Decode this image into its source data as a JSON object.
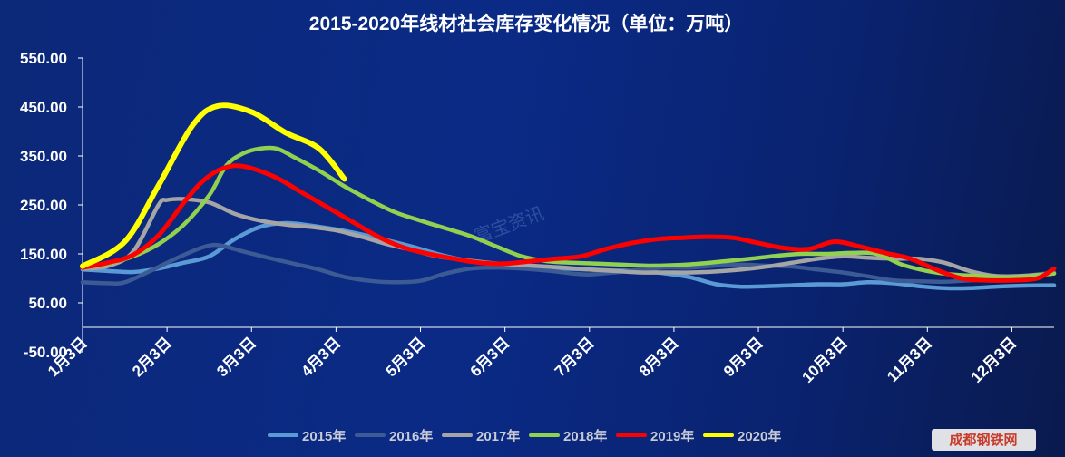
{
  "watermark": "富宝资讯",
  "corner_logo": "成都钢铁网",
  "colors": {
    "background": "#0a2a86",
    "axis": "#ffffff",
    "2015年": "#5b9bd5",
    "2016年": "#3c5a94",
    "2017年": "#a5a5a5",
    "2018年": "#92d050",
    "2019年": "#ff0000",
    "2020年": "#ffff00"
  },
  "chart_data": {
    "type": "line",
    "title": "2015-2020年线材社会库存变化情况（单位：万吨）",
    "xlabel": "",
    "ylabel": "",
    "ylim": [
      -50,
      550
    ],
    "yticks": [
      "550.00",
      "450.00",
      "350.00",
      "250.00",
      "150.00",
      "50.00",
      "-50.00"
    ],
    "ytick_values": [
      550,
      450,
      350,
      250,
      150,
      50,
      -50
    ],
    "x_range": [
      0,
      11.5
    ],
    "categories": [
      "1月3日",
      "2月3日",
      "3月3日",
      "4月3日",
      "5月3日",
      "6月3日",
      "7月3日",
      "8月3日",
      "9月3日",
      "10月3日",
      "11月3日",
      "12月3日"
    ],
    "grid": false,
    "legend_position": "bottom",
    "series": [
      {
        "name": "2015年",
        "color": "#5b9bd5",
        "points": [
          [
            0,
            118
          ],
          [
            0.3,
            115
          ],
          [
            0.6,
            113
          ],
          [
            0.9,
            120
          ],
          [
            1.2,
            132
          ],
          [
            1.5,
            145
          ],
          [
            1.8,
            180
          ],
          [
            2.1,
            205
          ],
          [
            2.4,
            213
          ],
          [
            2.7,
            208
          ],
          [
            3.0,
            200
          ],
          [
            3.3,
            190
          ],
          [
            3.6,
            178
          ],
          [
            3.9,
            165
          ],
          [
            4.2,
            150
          ],
          [
            4.5,
            138
          ],
          [
            4.8,
            130
          ],
          [
            5.1,
            125
          ],
          [
            5.4,
            122
          ],
          [
            5.7,
            120
          ],
          [
            6.0,
            118
          ],
          [
            6.3,
            116
          ],
          [
            6.6,
            115
          ],
          [
            6.9,
            110
          ],
          [
            7.2,
            102
          ],
          [
            7.5,
            88
          ],
          [
            7.8,
            83
          ],
          [
            8.1,
            84
          ],
          [
            8.4,
            86
          ],
          [
            8.7,
            88
          ],
          [
            9.0,
            88
          ],
          [
            9.3,
            92
          ],
          [
            9.6,
            90
          ],
          [
            9.9,
            84
          ],
          [
            10.2,
            80
          ],
          [
            10.5,
            80
          ],
          [
            10.8,
            83
          ],
          [
            11.1,
            85
          ],
          [
            11.5,
            86
          ]
        ]
      },
      {
        "name": "2016年",
        "color": "#3c5a94",
        "points": [
          [
            0,
            92
          ],
          [
            0.3,
            90
          ],
          [
            0.5,
            92
          ],
          [
            0.8,
            115
          ],
          [
            1.1,
            140
          ],
          [
            1.4,
            162
          ],
          [
            1.6,
            168
          ],
          [
            1.9,
            155
          ],
          [
            2.2,
            142
          ],
          [
            2.5,
            130
          ],
          [
            2.8,
            118
          ],
          [
            3.1,
            103
          ],
          [
            3.4,
            95
          ],
          [
            3.7,
            92
          ],
          [
            4.0,
            95
          ],
          [
            4.3,
            110
          ],
          [
            4.6,
            120
          ],
          [
            4.9,
            122
          ],
          [
            5.2,
            120
          ],
          [
            5.5,
            116
          ],
          [
            5.8,
            110
          ],
          [
            6.0,
            108
          ],
          [
            6.3,
            112
          ],
          [
            6.6,
            118
          ],
          [
            6.9,
            122
          ],
          [
            7.2,
            122
          ],
          [
            7.5,
            126
          ],
          [
            7.8,
            128
          ],
          [
            8.1,
            126
          ],
          [
            8.4,
            124
          ],
          [
            8.7,
            118
          ],
          [
            9.0,
            112
          ],
          [
            9.3,
            104
          ],
          [
            9.6,
            96
          ],
          [
            9.9,
            94
          ],
          [
            10.2,
            93
          ],
          [
            10.5,
            96
          ],
          [
            10.8,
            98
          ],
          [
            11.1,
            104
          ],
          [
            11.5,
            112
          ]
        ]
      },
      {
        "name": "2017年",
        "color": "#a5a5a5",
        "points": [
          [
            0,
            120
          ],
          [
            0.3,
            125
          ],
          [
            0.6,
            155
          ],
          [
            0.9,
            250
          ],
          [
            1.0,
            260
          ],
          [
            1.2,
            262
          ],
          [
            1.5,
            255
          ],
          [
            1.8,
            232
          ],
          [
            2.1,
            218
          ],
          [
            2.4,
            210
          ],
          [
            2.7,
            205
          ],
          [
            3.0,
            198
          ],
          [
            3.3,
            185
          ],
          [
            3.6,
            170
          ],
          [
            3.9,
            158
          ],
          [
            4.2,
            145
          ],
          [
            4.5,
            138
          ],
          [
            4.8,
            132
          ],
          [
            5.1,
            128
          ],
          [
            5.4,
            125
          ],
          [
            5.7,
            122
          ],
          [
            6.0,
            118
          ],
          [
            6.3,
            115
          ],
          [
            6.6,
            112
          ],
          [
            6.9,
            112
          ],
          [
            7.2,
            112
          ],
          [
            7.5,
            114
          ],
          [
            7.8,
            118
          ],
          [
            8.1,
            124
          ],
          [
            8.4,
            132
          ],
          [
            8.7,
            140
          ],
          [
            9.0,
            145
          ],
          [
            9.3,
            142
          ],
          [
            9.6,
            140
          ],
          [
            9.9,
            140
          ],
          [
            10.2,
            132
          ],
          [
            10.5,
            115
          ],
          [
            10.8,
            105
          ],
          [
            11.1,
            105
          ],
          [
            11.5,
            110
          ]
        ]
      },
      {
        "name": "2018年",
        "color": "#92d050",
        "points": [
          [
            0,
            122
          ],
          [
            0.3,
            130
          ],
          [
            0.6,
            145
          ],
          [
            0.9,
            170
          ],
          [
            1.2,
            210
          ],
          [
            1.5,
            270
          ],
          [
            1.7,
            330
          ],
          [
            1.9,
            355
          ],
          [
            2.1,
            365
          ],
          [
            2.3,
            365
          ],
          [
            2.5,
            348
          ],
          [
            2.8,
            320
          ],
          [
            3.1,
            288
          ],
          [
            3.4,
            260
          ],
          [
            3.7,
            235
          ],
          [
            4.0,
            218
          ],
          [
            4.3,
            202
          ],
          [
            4.6,
            186
          ],
          [
            4.9,
            165
          ],
          [
            5.2,
            145
          ],
          [
            5.5,
            135
          ],
          [
            5.8,
            132
          ],
          [
            6.1,
            130
          ],
          [
            6.4,
            128
          ],
          [
            6.7,
            126
          ],
          [
            7.0,
            127
          ],
          [
            7.3,
            130
          ],
          [
            7.6,
            135
          ],
          [
            7.9,
            140
          ],
          [
            8.2,
            146
          ],
          [
            8.5,
            150
          ],
          [
            8.8,
            150
          ],
          [
            9.1,
            152
          ],
          [
            9.4,
            150
          ],
          [
            9.7,
            128
          ],
          [
            10.0,
            115
          ],
          [
            10.3,
            108
          ],
          [
            10.6,
            105
          ],
          [
            10.9,
            102
          ],
          [
            11.2,
            104
          ],
          [
            11.5,
            110
          ]
        ]
      },
      {
        "name": "2019年",
        "color": "#ff0000",
        "points": [
          [
            0,
            122
          ],
          [
            0.3,
            132
          ],
          [
            0.6,
            148
          ],
          [
            0.9,
            188
          ],
          [
            1.2,
            255
          ],
          [
            1.4,
            295
          ],
          [
            1.6,
            320
          ],
          [
            1.8,
            330
          ],
          [
            2.0,
            325
          ],
          [
            2.3,
            305
          ],
          [
            2.6,
            275
          ],
          [
            2.9,
            245
          ],
          [
            3.2,
            215
          ],
          [
            3.5,
            185
          ],
          [
            3.8,
            163
          ],
          [
            4.1,
            150
          ],
          [
            4.4,
            140
          ],
          [
            4.7,
            132
          ],
          [
            5.0,
            130
          ],
          [
            5.3,
            135
          ],
          [
            5.6,
            140
          ],
          [
            5.9,
            145
          ],
          [
            6.2,
            160
          ],
          [
            6.5,
            172
          ],
          [
            6.8,
            180
          ],
          [
            7.1,
            183
          ],
          [
            7.4,
            185
          ],
          [
            7.7,
            183
          ],
          [
            8.0,
            172
          ],
          [
            8.3,
            162
          ],
          [
            8.6,
            160
          ],
          [
            8.9,
            175
          ],
          [
            9.2,
            165
          ],
          [
            9.5,
            152
          ],
          [
            9.8,
            140
          ],
          [
            10.1,
            118
          ],
          [
            10.4,
            100
          ],
          [
            10.7,
            96
          ],
          [
            11.0,
            96
          ],
          [
            11.3,
            100
          ],
          [
            11.5,
            120
          ]
        ]
      },
      {
        "name": "2020年",
        "color": "#ffff00",
        "points": [
          [
            0,
            125
          ],
          [
            0.5,
            175
          ],
          [
            0.9,
            290
          ],
          [
            1.3,
            412
          ],
          [
            1.6,
            452
          ],
          [
            2.0,
            440
          ],
          [
            2.4,
            398
          ],
          [
            2.8,
            365
          ],
          [
            3.1,
            303
          ]
        ]
      }
    ]
  }
}
